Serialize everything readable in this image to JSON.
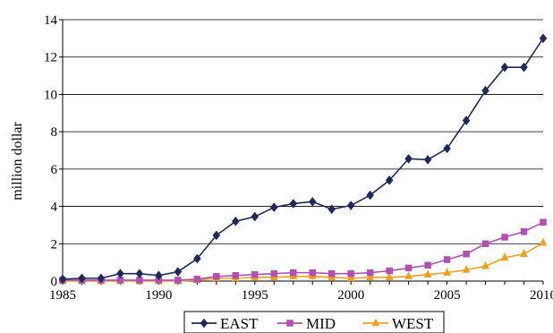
{
  "chart_data": {
    "type": "line",
    "title": "",
    "xlabel": "",
    "ylabel": "million dollar",
    "x": [
      1985,
      1986,
      1987,
      1988,
      1989,
      1990,
      1991,
      1992,
      1993,
      1994,
      1995,
      1996,
      1997,
      1998,
      1999,
      2000,
      2001,
      2002,
      2003,
      2004,
      2005,
      2006,
      2007,
      2008,
      2009,
      2010
    ],
    "xlim": [
      1985,
      2010
    ],
    "ylim": [
      0,
      14
    ],
    "x_ticks": [
      "1985",
      "1990",
      "1995",
      "2000",
      "2005",
      "2010"
    ],
    "y_ticks": [
      "0",
      "2",
      "4",
      "6",
      "8",
      "10",
      "12",
      "14"
    ],
    "grid": "horizontal",
    "legend_position": "bottom",
    "series": [
      {
        "name": "EAST",
        "color": "#1f2a5a",
        "marker": "diamond",
        "values": [
          0.1,
          0.15,
          0.15,
          0.4,
          0.4,
          0.3,
          0.5,
          1.2,
          2.45,
          3.2,
          3.45,
          3.95,
          4.15,
          4.25,
          3.85,
          4.05,
          4.6,
          5.4,
          6.55,
          6.5,
          7.1,
          8.6,
          10.2,
          11.45,
          11.45,
          13.0
        ]
      },
      {
        "name": "MID",
        "color": "#b050b0",
        "marker": "square",
        "values": [
          0.05,
          0.05,
          0.05,
          0.05,
          0.05,
          0.05,
          0.05,
          0.1,
          0.25,
          0.3,
          0.35,
          0.4,
          0.45,
          0.45,
          0.4,
          0.4,
          0.45,
          0.55,
          0.7,
          0.85,
          1.15,
          1.45,
          2.0,
          2.35,
          2.65,
          3.15
        ]
      },
      {
        "name": "WEST",
        "color": "#f0a020",
        "marker": "triangle",
        "values": [
          0.0,
          0.0,
          0.0,
          0.0,
          0.0,
          0.0,
          0.0,
          0.05,
          0.15,
          0.15,
          0.2,
          0.2,
          0.25,
          0.25,
          0.2,
          0.15,
          0.2,
          0.2,
          0.25,
          0.35,
          0.45,
          0.6,
          0.8,
          1.25,
          1.45,
          2.05
        ]
      }
    ]
  }
}
